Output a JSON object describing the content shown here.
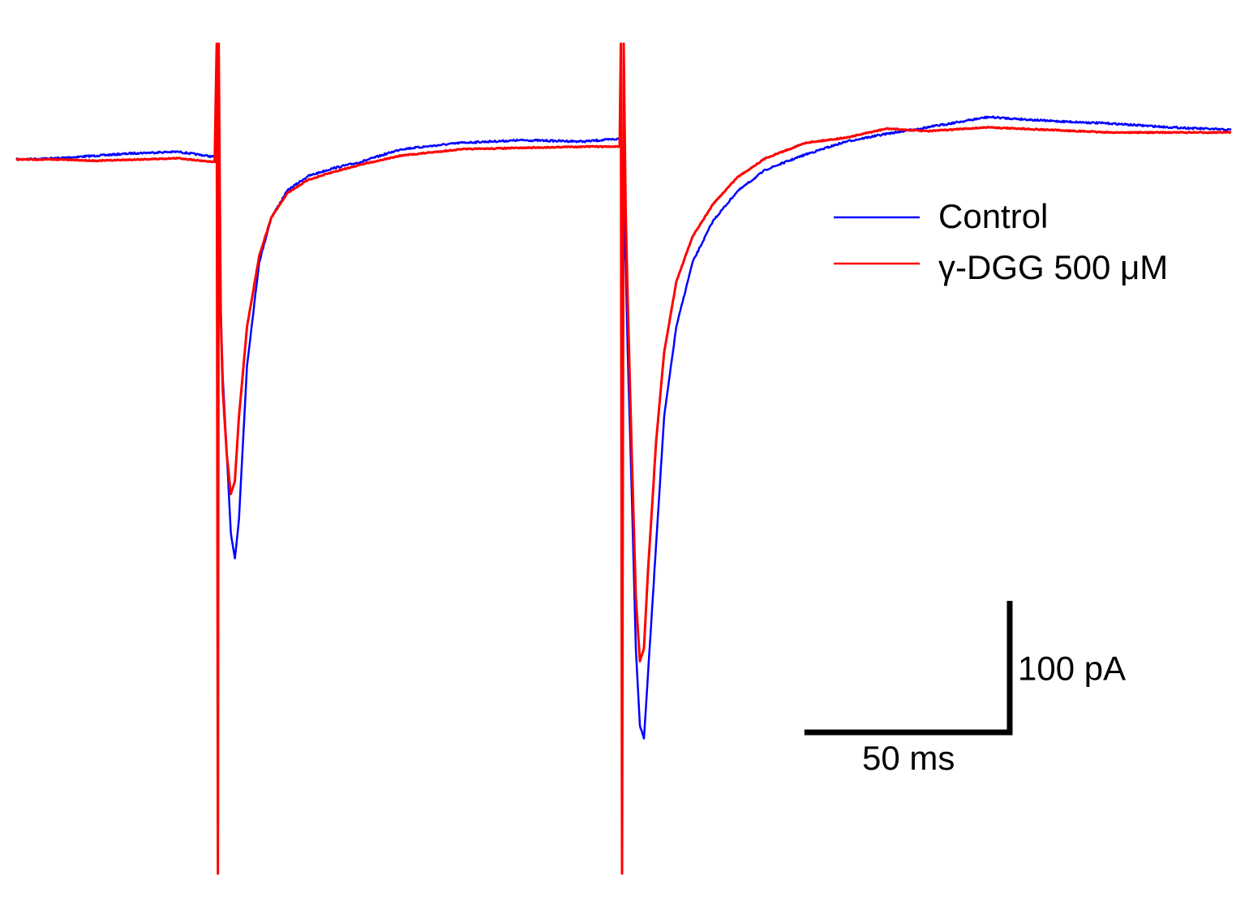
{
  "chart_data": {
    "type": "line",
    "x_unit": "ms",
    "y_unit": "pA",
    "xlim": [
      0,
      300
    ],
    "ylim": [
      -560,
      100
    ],
    "baseline": 0,
    "series": [
      {
        "name": "Control",
        "color": "#0000ff",
        "x": [
          0,
          10,
          20,
          30,
          40,
          49,
          49.6,
          50,
          51,
          52,
          53,
          54,
          55,
          57,
          60,
          63,
          67,
          72,
          78,
          85,
          95,
          110,
          125,
          140,
          149,
          149.4,
          150,
          150.5,
          151,
          152,
          153,
          154,
          155,
          156,
          158,
          160,
          163,
          167,
          172,
          178,
          185,
          195,
          205,
          215,
          225,
          240,
          255,
          270,
          285,
          300
        ],
        "values": [
          0,
          1,
          3,
          5,
          6,
          2,
          35,
          -65,
          -170,
          -230,
          -290,
          -310,
          -280,
          -160,
          -80,
          -45,
          -24,
          -13,
          -7,
          -2,
          8,
          13,
          15,
          14,
          16,
          10,
          -40,
          -80,
          -150,
          -260,
          -380,
          -440,
          -450,
          -400,
          -300,
          -200,
          -130,
          -80,
          -48,
          -25,
          -8,
          4,
          14,
          20,
          25,
          33,
          30,
          28,
          25,
          23
        ]
      },
      {
        "name": "γ-DGG 500 μM",
        "color": "#ff0000",
        "x": [
          0,
          10,
          20,
          30,
          40,
          49,
          49.5,
          49.8,
          50,
          50.5,
          51,
          52,
          53,
          54,
          55,
          57,
          60,
          63,
          67,
          72,
          78,
          85,
          95,
          110,
          125,
          140,
          149,
          149.3,
          149.6,
          150,
          150.5,
          151,
          152,
          153,
          154,
          155,
          156,
          158,
          160,
          163,
          167,
          172,
          178,
          185,
          195,
          205,
          215,
          225,
          240,
          255,
          270,
          285,
          300
        ],
        "values": [
          0,
          0,
          -1,
          0,
          1,
          -2,
          90,
          -555,
          90,
          -120,
          -180,
          -230,
          -260,
          -250,
          -200,
          -130,
          -75,
          -45,
          -26,
          -16,
          -10,
          -4,
          3,
          8,
          9,
          10,
          10,
          90,
          -555,
          90,
          -40,
          -110,
          -230,
          -340,
          -390,
          -380,
          -320,
          -220,
          -150,
          -95,
          -60,
          -35,
          -14,
          1,
          13,
          17,
          24,
          22,
          25,
          23,
          21,
          21,
          21
        ]
      }
    ],
    "legend": {
      "placement": "top-right",
      "entries": [
        "Control",
        "γ-DGG 500 μM"
      ]
    },
    "scale_bar": {
      "x_value": 50,
      "x_label": "50 ms",
      "y_value": 100,
      "y_label": "100 pA"
    }
  }
}
